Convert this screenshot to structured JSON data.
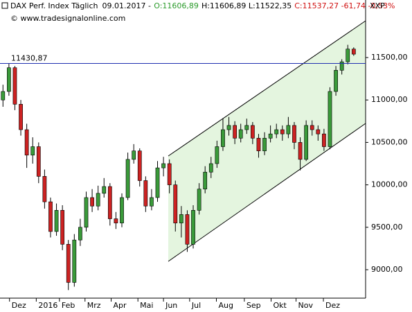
{
  "chart_data": {
    "type": "candlestick",
    "title": "DAX Perf. Index Täglich",
    "date": "09.01.2017 -",
    "open_label": "O:11606,89",
    "hl_label": "H:11606,89 L:11522,35",
    "close_label": "C:11537,27 -61,74 -0,53%",
    "symbol": "XXP",
    "watermark": "© www.tradesignalonline.com",
    "up_color": "#3a9a3a",
    "down_color": "#cc2222",
    "reference_line": {
      "value": 11430.87,
      "label": "11430,87",
      "color": "#1f2fb0"
    },
    "xlim": [
      -0.5,
      61
    ],
    "xticks": [
      {
        "value": 1.1,
        "label": "Dez"
      },
      {
        "value": 5.6,
        "label": "2016"
      },
      {
        "value": 9.5,
        "label": "Feb"
      },
      {
        "value": 13.8,
        "label": "Mrz"
      },
      {
        "value": 18.2,
        "label": "Apr"
      },
      {
        "value": 22.7,
        "label": "Mai"
      },
      {
        "value": 27,
        "label": "Jun"
      },
      {
        "value": 31.4,
        "label": "Jul"
      },
      {
        "value": 35.9,
        "label": "Aug"
      },
      {
        "value": 40.6,
        "label": "Sep"
      },
      {
        "value": 45.1,
        "label": "Okt"
      },
      {
        "value": 49.3,
        "label": "Nov"
      },
      {
        "value": 53.9,
        "label": "Dez"
      }
    ],
    "ylim": [
      8665,
      12178
    ],
    "yticks": [
      {
        "value": 9000,
        "label": "9000,00"
      },
      {
        "value": 9500,
        "label": "9500,00"
      },
      {
        "value": 10000,
        "label": "10000,00"
      },
      {
        "value": 10500,
        "label": "10500,00"
      },
      {
        "value": 11000,
        "label": "11000,00"
      },
      {
        "value": 11500,
        "label": "11500,00"
      }
    ],
    "open": [
      11000,
      11100,
      11380,
      10950,
      10650,
      10350,
      10450,
      10100,
      9800,
      9450,
      9700,
      9300,
      8850,
      9350,
      9500,
      9850,
      9750,
      9900,
      9980,
      9600,
      9550,
      9850,
      10300,
      10400,
      10050,
      9750,
      9850,
      10200,
      10250,
      10000,
      9550,
      9650,
      9300,
      9700,
      9950,
      10150,
      10250,
      10450,
      10650,
      10700,
      10550,
      10650,
      10700,
      10550,
      10400,
      10550,
      10600,
      10650,
      10600,
      10700,
      10500,
      10300,
      10700,
      10650,
      10600,
      10450,
      11100,
      11350,
      11450,
      11600
    ],
    "high": [
      11180,
      11430,
      11400,
      11000,
      10720,
      10560,
      10500,
      10180,
      9850,
      9780,
      9760,
      9350,
      9420,
      9600,
      9920,
      9950,
      9990,
      10080,
      10020,
      9680,
      9900,
      10380,
      10480,
      10430,
      10100,
      9950,
      10280,
      10330,
      10300,
      10050,
      9750,
      9700,
      9760,
      10020,
      10220,
      10330,
      10520,
      10780,
      10800,
      10750,
      10720,
      10780,
      10740,
      10600,
      10620,
      10700,
      10720,
      10700,
      10800,
      10740,
      10560,
      10760,
      10760,
      10700,
      10660,
      11150,
      11400,
      11480,
      11650,
      11620
    ],
    "low": [
      10920,
      11050,
      10880,
      10580,
      10200,
      10250,
      10020,
      9720,
      9380,
      9400,
      9230,
      8760,
      8800,
      9280,
      9450,
      9680,
      9700,
      9850,
      9520,
      9480,
      9500,
      9820,
      10250,
      9980,
      9680,
      9700,
      9800,
      10100,
      9900,
      9450,
      9380,
      9210,
      9250,
      9650,
      9900,
      10080,
      10200,
      10400,
      10580,
      10480,
      10500,
      10600,
      10480,
      10320,
      10350,
      10500,
      10550,
      10520,
      10550,
      10420,
      10170,
      10280,
      10580,
      10520,
      10400,
      10420,
      11050,
      11300,
      11420,
      11520
    ],
    "close": [
      11100,
      11380,
      10950,
      10650,
      10350,
      10450,
      10100,
      9800,
      9450,
      9700,
      9300,
      8850,
      9350,
      9500,
      9850,
      9750,
      9900,
      9980,
      9600,
      9550,
      9850,
      10300,
      10400,
      10050,
      9750,
      9850,
      10200,
      10250,
      10000,
      9550,
      9650,
      9300,
      9700,
      9950,
      10150,
      10250,
      10450,
      10650,
      10700,
      10550,
      10650,
      10700,
      10550,
      10400,
      10550,
      10600,
      10650,
      10600,
      10700,
      10500,
      10300,
      10700,
      10650,
      10600,
      10450,
      11100,
      11350,
      11450,
      11600,
      11540
    ]
  }
}
